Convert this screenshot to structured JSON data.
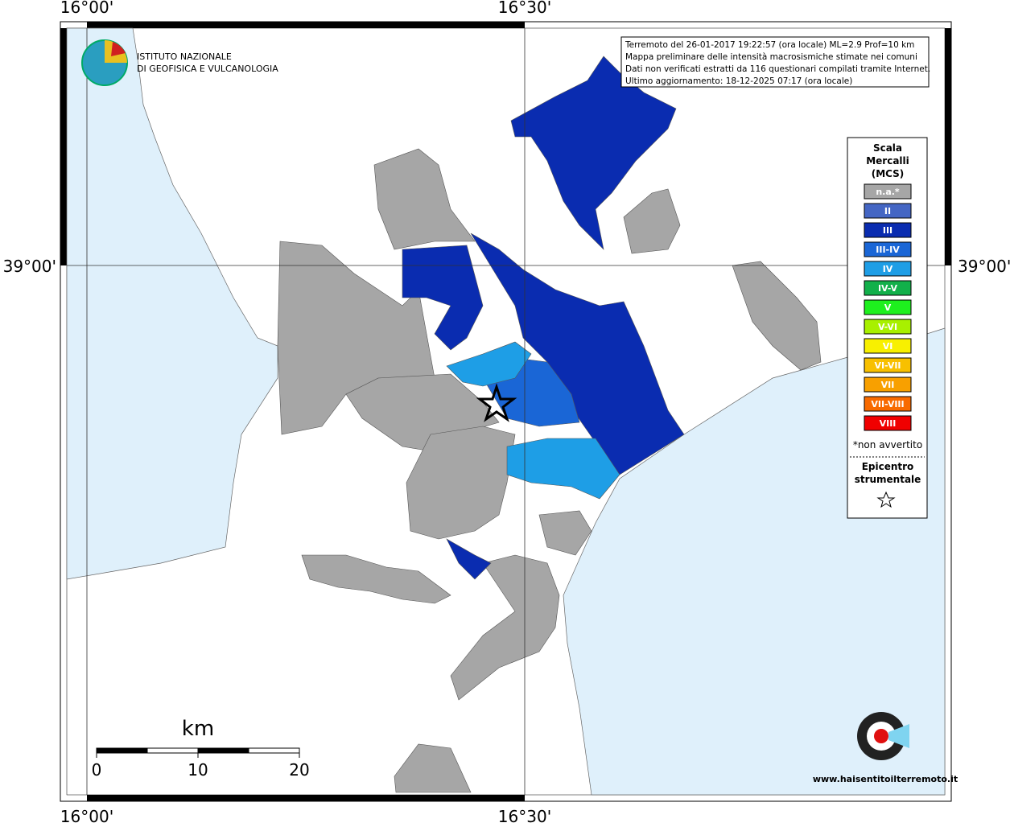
{
  "axes": {
    "top": [
      "16°00'",
      "16°30'"
    ],
    "bottom": [
      "16°00'",
      "16°30'"
    ],
    "left": "39°00'",
    "right": "39°00'"
  },
  "logo": {
    "line1": "ISTITUTO NAZIONALE",
    "line2": "DI GEOFISICA E VULCANOLOGIA"
  },
  "info": {
    "lines": [
      "Terremoto del 26-01-2017 19:22:57 (ora locale) ML=2.9 Prof=10 km",
      "Mappa preliminare delle intensità macrosismiche stimate nei comuni",
      "Dati non verificati estratti da 116 questionari compilati tramite Internet.",
      "Ultimo aggiornamento: 18-12-2025 07:17 (ora locale)"
    ]
  },
  "legend": {
    "title": [
      "Scala",
      "Mercalli",
      "(MCS)"
    ],
    "items": [
      {
        "label": "n.a.*",
        "color": "#a6a6a6"
      },
      {
        "label": "II",
        "color": "#4466c4"
      },
      {
        "label": "III",
        "color": "#0a2cb0"
      },
      {
        "label": "III-IV",
        "color": "#1a66d6"
      },
      {
        "label": "IV",
        "color": "#1e9ee6"
      },
      {
        "label": "IV-V",
        "color": "#12b04a"
      },
      {
        "label": "V",
        "color": "#1ef01e"
      },
      {
        "label": "V-VI",
        "color": "#a8f000"
      },
      {
        "label": "VI",
        "color": "#f8f000"
      },
      {
        "label": "VI-VII",
        "color": "#f8c000"
      },
      {
        "label": "VII",
        "color": "#f8a000"
      },
      {
        "label": "VII-VIII",
        "color": "#f86a00"
      },
      {
        "label": "VIII",
        "color": "#f00000"
      }
    ],
    "note": "*non avvertito",
    "epicenter": [
      "Epicentro",
      "strumentale"
    ]
  },
  "scalebar": {
    "unit": "km",
    "ticks": [
      "0",
      "10",
      "20"
    ]
  },
  "badge": "www.haisentitoilterremoto.it"
}
